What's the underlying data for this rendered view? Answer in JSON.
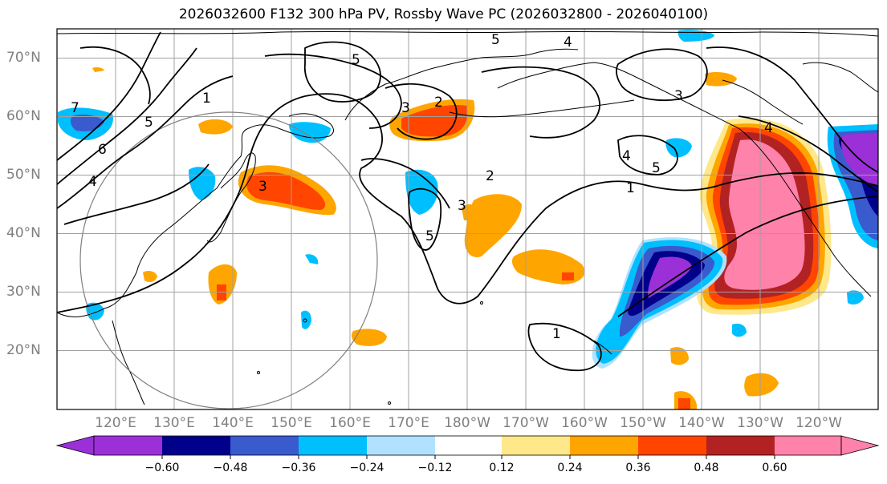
{
  "title": "2026032600 F132 300 hPa PV, Rossby Wave PC (2026032800 - 2026040100)",
  "map": {
    "lon_range": [
      110,
      250
    ],
    "lat_range": [
      10,
      75
    ],
    "lat_labels": [
      "70°N",
      "60°N",
      "50°N",
      "40°N",
      "30°N",
      "20°N"
    ],
    "lon_labels": [
      "120°E",
      "130°E",
      "140°E",
      "150°E",
      "160°E",
      "170°E",
      "180°W",
      "170°W",
      "160°W",
      "150°W",
      "140°W",
      "130°W",
      "120°W"
    ],
    "contour_labels": [
      "1",
      "2",
      "3",
      "4",
      "5",
      "6",
      "7"
    ]
  },
  "colorbar": {
    "colors": [
      "#9b30d8",
      "#00008b",
      "#3a5bcd",
      "#00bfff",
      "#b0e2ff",
      "#ffffff",
      "#ffe88a",
      "#ffa500",
      "#ff4500",
      "#b22222",
      "#ff82ab"
    ],
    "ticks": [
      "−0.60",
      "−0.48",
      "−0.36",
      "−0.24",
      "−0.12",
      "0.12",
      "0.24",
      "0.36",
      "0.48",
      "0.60"
    ]
  },
  "palette": {
    "gridline": "#a0a0a0",
    "axis_label": "#7f7f7f",
    "contour": "#000000"
  }
}
